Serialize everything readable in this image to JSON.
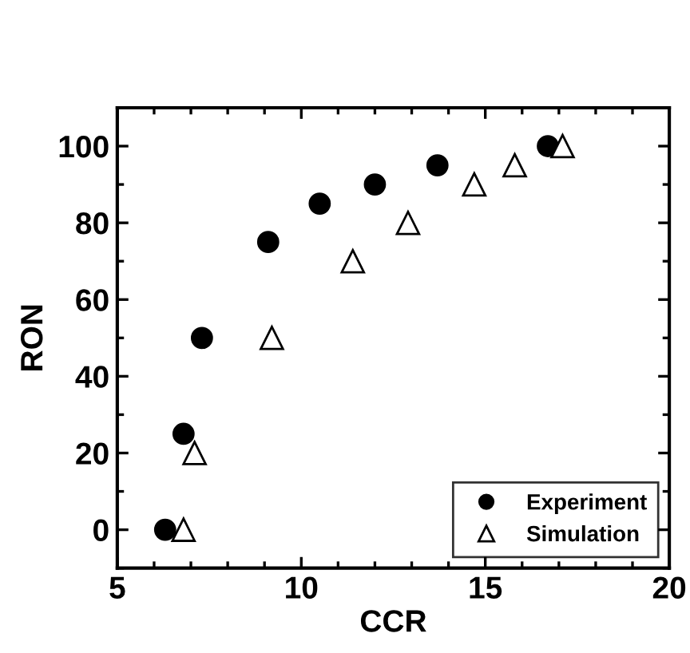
{
  "chart_data": {
    "type": "scatter",
    "xlabel": "CCR",
    "ylabel": "RON",
    "xlim": [
      5,
      20
    ],
    "xticks": [
      5,
      10,
      15,
      20
    ],
    "ylim": [
      -10,
      110
    ],
    "yticks": [
      0,
      20,
      40,
      60,
      80,
      100
    ],
    "grid": false,
    "legend": "bottom right",
    "series": [
      {
        "name": "Experiment",
        "color": "#000000",
        "marker": "circle",
        "x": [
          6.3,
          6.8,
          7.3,
          9.1,
          10.5,
          12.0,
          13.7,
          16.7
        ],
        "values": [
          0,
          25,
          50,
          75,
          85,
          90,
          95,
          100
        ]
      },
      {
        "name": "Simulation",
        "color": "#000000",
        "marker": "triangle",
        "x": [
          6.8,
          7.1,
          9.2,
          11.4,
          12.9,
          14.7,
          15.8,
          17.1
        ],
        "values": [
          0,
          20,
          50,
          70,
          80,
          90,
          95,
          100
        ]
      }
    ]
  }
}
